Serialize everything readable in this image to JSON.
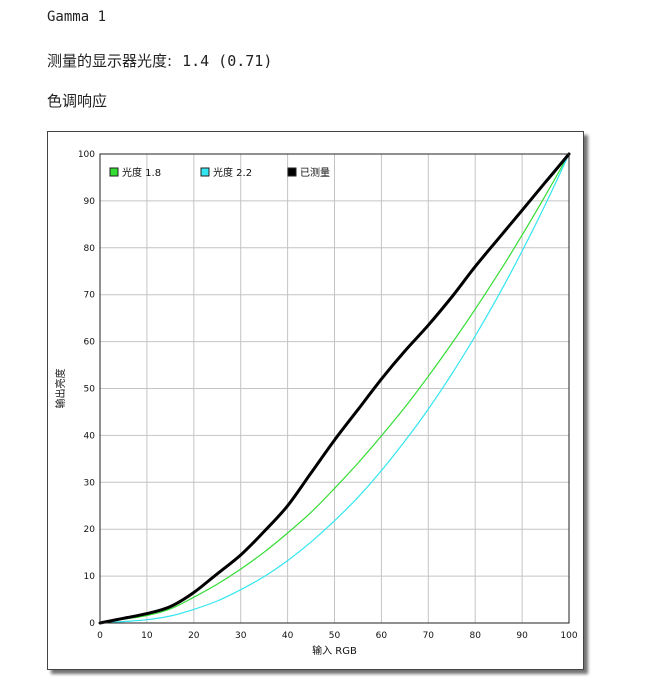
{
  "header": {
    "title": "Gamma 1",
    "measured_label": "测量的显示器光度:",
    "measured_value": "1.4 (0.71)",
    "section_title": "色调响应"
  },
  "colors": {
    "gamma18": "#33dd33",
    "gamma22": "#33e6f0",
    "measured": "#000000",
    "grid": "#c4c4c4"
  },
  "chart_data": {
    "type": "line",
    "xlabel": "输入 RGB",
    "ylabel": "输出亮度",
    "xlim": [
      0,
      100
    ],
    "ylim": [
      0,
      100
    ],
    "xticks": [
      0,
      10,
      20,
      30,
      40,
      50,
      60,
      70,
      80,
      90,
      100
    ],
    "yticks": [
      0,
      10,
      20,
      30,
      40,
      50,
      60,
      70,
      80,
      90,
      100
    ],
    "grid": true,
    "legend_position": "top-left",
    "series": [
      {
        "name": "光度 1.8",
        "color": "#33dd33",
        "x": [
          0,
          5,
          10,
          15,
          20,
          25,
          30,
          35,
          40,
          45,
          50,
          55,
          60,
          65,
          70,
          75,
          80,
          85,
          90,
          95,
          100
        ],
        "y": [
          0,
          0.8,
          1.6,
          3.0,
          5.5,
          8.3,
          11.5,
          15.1,
          19.2,
          23.6,
          28.7,
          34.1,
          39.9,
          46.0,
          52.6,
          59.6,
          66.9,
          74.6,
          82.7,
          91.2,
          100
        ]
      },
      {
        "name": "光度 2.2",
        "color": "#33e6f0",
        "x": [
          0,
          5,
          10,
          15,
          20,
          25,
          30,
          35,
          40,
          45,
          50,
          55,
          60,
          65,
          70,
          75,
          80,
          85,
          90,
          95,
          100
        ],
        "y": [
          0,
          0.3,
          0.7,
          1.5,
          2.9,
          4.7,
          7.1,
          9.9,
          13.3,
          17.3,
          21.8,
          26.8,
          32.5,
          38.8,
          45.6,
          53.1,
          61.2,
          69.9,
          79.3,
          89.3,
          100
        ]
      },
      {
        "name": "已测量",
        "color": "#000000",
        "x": [
          0,
          5,
          10,
          15,
          20,
          25,
          30,
          35,
          40,
          45,
          50,
          55,
          60,
          65,
          70,
          75,
          80,
          85,
          90,
          95,
          100
        ],
        "y": [
          0,
          1.0,
          2.0,
          3.5,
          6.5,
          10.5,
          14.5,
          19.5,
          25.0,
          32.0,
          39.0,
          45.5,
          52.0,
          58.0,
          63.5,
          69.5,
          76.0,
          82.0,
          88.0,
          94.0,
          100
        ]
      }
    ]
  }
}
